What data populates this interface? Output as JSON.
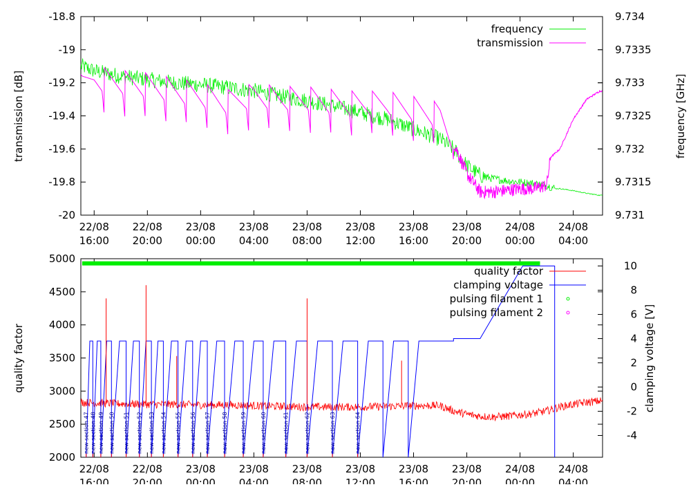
{
  "chart_data": [
    {
      "type": "line",
      "ylabel": "transmission [dB]",
      "y2label": "frequency [GHz]",
      "x_tick_labels": [
        {
          "date": "22/08",
          "time": "16:00",
          "h": 0
        },
        {
          "date": "22/08",
          "time": "20:00",
          "h": 4
        },
        {
          "date": "23/08",
          "time": "00:00",
          "h": 8
        },
        {
          "date": "23/08",
          "time": "04:00",
          "h": 12
        },
        {
          "date": "23/08",
          "time": "08:00",
          "h": 16
        },
        {
          "date": "23/08",
          "time": "12:00",
          "h": 20
        },
        {
          "date": "23/08",
          "time": "16:00",
          "h": 24
        },
        {
          "date": "23/08",
          "time": "20:00",
          "h": 28
        },
        {
          "date": "24/08",
          "time": "00:00",
          "h": 32
        },
        {
          "date": "24/08",
          "time": "04:00",
          "h": 36
        }
      ],
      "xlim_hours": [
        -1,
        38.2
      ],
      "ylim": [
        -20,
        -18.8
      ],
      "y_ticks": [
        "-20",
        "-19.8",
        "-19.6",
        "-19.4",
        "-19.2",
        "-19",
        "-18.8"
      ],
      "y2lim": [
        9.731,
        9.734
      ],
      "y2_ticks": [
        "9.731",
        "9.7315",
        "9.732",
        "9.7325",
        "9.733",
        "9.7335",
        "9.734"
      ],
      "legend_position": "top-right",
      "series": [
        {
          "name": "frequency",
          "color": "#00ee00",
          "axis": "y2",
          "x": [
            -0.9,
            0,
            2,
            4,
            6,
            8,
            10,
            12,
            14,
            16,
            18,
            20,
            22,
            24,
            26,
            27,
            28,
            29,
            30,
            31,
            32,
            33,
            34,
            34.7,
            35,
            36,
            37,
            38
          ],
          "y": [
            9.73325,
            9.73318,
            9.7331,
            9.73305,
            9.733,
            9.73297,
            9.73293,
            9.73288,
            9.7328,
            9.73273,
            9.73265,
            9.73255,
            9.73245,
            9.7323,
            9.73215,
            9.732,
            9.73175,
            9.7316,
            9.73155,
            9.73152,
            9.7315,
            9.73148,
            9.73145,
            9.7314,
            9.7314,
            9.73137,
            9.73133,
            9.7313
          ]
        },
        {
          "name": "transmission",
          "color": "#ff00ff",
          "axis": "y",
          "x": [
            -0.9,
            0,
            2,
            4,
            6,
            8,
            10,
            12,
            14,
            16,
            18,
            20,
            22,
            24,
            26,
            27,
            28,
            29,
            30,
            31,
            32,
            33,
            34,
            34.3,
            35,
            36,
            37,
            38
          ],
          "y": [
            -19.25,
            -19.18,
            -19.2,
            -19.22,
            -19.25,
            -19.28,
            -19.32,
            -19.28,
            -19.3,
            -19.3,
            -19.32,
            -19.33,
            -19.33,
            -19.36,
            -19.4,
            -19.56,
            -19.75,
            -19.86,
            -19.86,
            -19.85,
            -19.84,
            -19.84,
            -19.82,
            -19.65,
            -19.6,
            -19.42,
            -19.3,
            -19.25
          ]
        }
      ],
      "legend": [
        "frequency",
        "transmission"
      ]
    },
    {
      "type": "line",
      "ylabel": "quality factor",
      "y2label": "clamping voltage [V]",
      "x_tick_labels": [
        {
          "date": "22/08",
          "time": "16:00",
          "h": 0
        },
        {
          "date": "22/08",
          "time": "20:00",
          "h": 4
        },
        {
          "date": "23/08",
          "time": "00:00",
          "h": 8
        },
        {
          "date": "23/08",
          "time": "04:00",
          "h": 12
        },
        {
          "date": "23/08",
          "time": "08:00",
          "h": 16
        },
        {
          "date": "23/08",
          "time": "12:00",
          "h": 20
        },
        {
          "date": "23/08",
          "time": "16:00",
          "h": 24
        },
        {
          "date": "23/08",
          "time": "20:00",
          "h": 28
        },
        {
          "date": "24/08",
          "time": "00:00",
          "h": 32
        },
        {
          "date": "24/08",
          "time": "04:00",
          "h": 36
        }
      ],
      "xlim_hours": [
        -1,
        38.2
      ],
      "ylim": [
        2000,
        5000
      ],
      "y_ticks": [
        "2000",
        "2500",
        "3000",
        "3500",
        "4000",
        "4500",
        "5000"
      ],
      "y2lim": [
        -5.8,
        10.6
      ],
      "y2_ticks": [
        "-4",
        "-2",
        "0",
        "2",
        "4",
        "6",
        "8",
        "10"
      ],
      "legend_position": "top-right",
      "series": [
        {
          "name": "quality factor",
          "color": "#ff0000",
          "axis": "y",
          "x": [
            -0.9,
            0,
            2,
            4,
            6,
            8,
            10,
            12,
            14,
            16,
            18,
            20,
            22,
            24,
            26,
            27,
            28,
            29,
            30,
            31,
            32,
            33,
            34,
            35,
            36,
            37,
            38
          ],
          "y": [
            2830,
            2820,
            2810,
            2800,
            2800,
            2790,
            2790,
            2780,
            2770,
            2760,
            2760,
            2760,
            2770,
            2780,
            2780,
            2700,
            2650,
            2620,
            2610,
            2620,
            2640,
            2660,
            2700,
            2760,
            2800,
            2830,
            2850
          ]
        },
        {
          "name": "clamping voltage",
          "color": "#0000ff",
          "axis": "y2",
          "x": [],
          "y": []
        },
        {
          "name": "pulsing filament 1",
          "color": "#00ee00",
          "axis": "y",
          "x": [
            -0.9,
            33.5
          ],
          "y": [
            4930,
            4930
          ]
        },
        {
          "name": "pulsing filament 2",
          "color": "#ff00ff",
          "axis": "y",
          "x": [],
          "y": []
        }
      ],
      "legend": [
        "quality factor",
        "clamping voltage",
        "pulsing filament 1",
        "pulsing filament 2"
      ],
      "annotations": [
        "new section 47",
        "new section 48",
        "new section 49",
        "new section 50",
        "new section 51",
        "new section 52",
        "new section 53",
        "new section 54",
        "new section 55",
        "new section 56",
        "new section 57",
        "new section 58",
        "new section 59",
        "new section 60",
        "new section 61",
        "new section 62",
        "new section 63",
        "new section 64"
      ]
    }
  ]
}
